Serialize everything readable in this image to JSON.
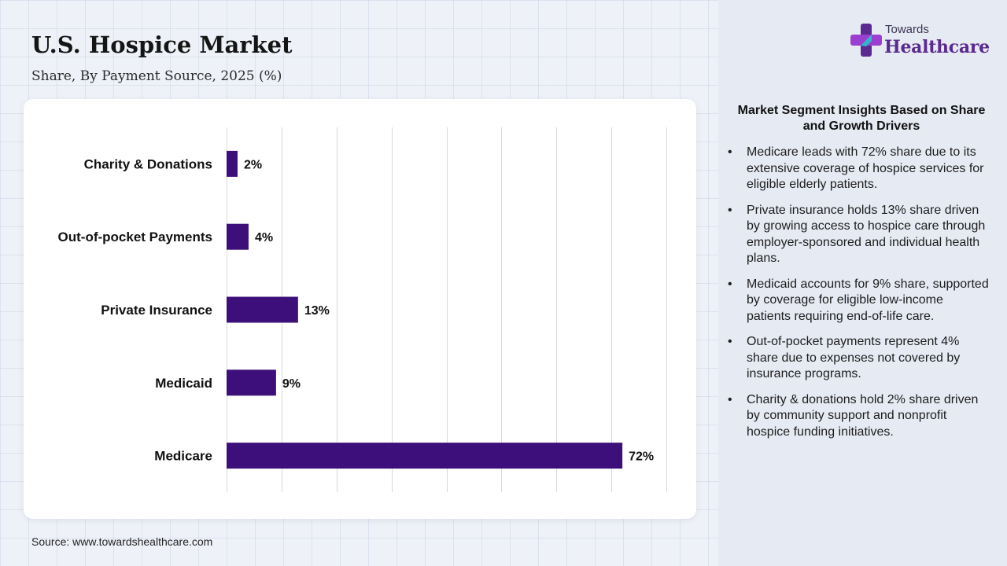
{
  "header": {
    "title": "U.S. Hospice Market",
    "subtitle": "Share, By Payment Source, 2025 (%)"
  },
  "chart_data": {
    "type": "bar",
    "orientation": "horizontal",
    "categories": [
      "Charity & Donations",
      "Out-of-pocket Payments",
      "Private Insurance",
      "Medicaid",
      "Medicare"
    ],
    "values": [
      2,
      4,
      13,
      9,
      72
    ],
    "value_labels": [
      "2%",
      "4%",
      "13%",
      "9%",
      "72%"
    ],
    "xlim": [
      0,
      80
    ],
    "grid": true,
    "bar_color": "#3d0f7a"
  },
  "source": "Source: www.towardshealthcare.com",
  "logo": {
    "line1": "Towards",
    "line2": "Healthcare",
    "colors": [
      "#5b2a8f",
      "#9b3fd0",
      "#2fb7c9"
    ]
  },
  "insights": {
    "title": "Market Segment Insights Based on Share and Growth Drivers",
    "items": [
      "Medicare leads with 72% share due to its extensive coverage of hospice services for eligible elderly patients.",
      "Private insurance holds 13% share driven by growing access to hospice care through employer-sponsored and individual health plans.",
      "Medicaid accounts for 9% share, supported by coverage for eligible low-income patients requiring end-of-life care.",
      "Out-of-pocket payments represent 4% share due to expenses not covered by insurance programs.",
      "Charity & donations hold 2% share driven by community support and nonprofit hospice funding initiatives."
    ]
  }
}
